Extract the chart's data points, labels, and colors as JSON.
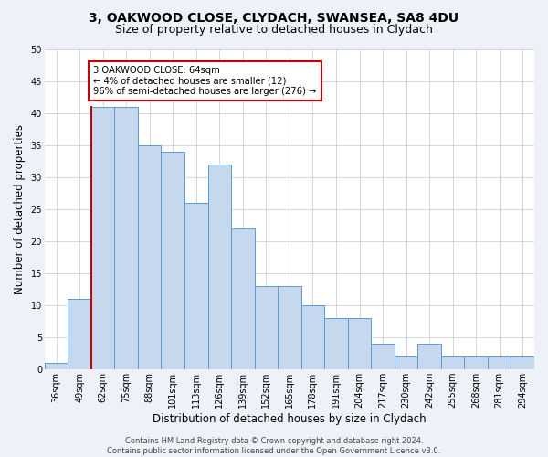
{
  "title1": "3, OAKWOOD CLOSE, CLYDACH, SWANSEA, SA8 4DU",
  "title2": "Size of property relative to detached houses in Clydach",
  "xlabel": "Distribution of detached houses by size in Clydach",
  "ylabel": "Number of detached properties",
  "categories": [
    "36sqm",
    "49sqm",
    "62sqm",
    "75sqm",
    "88sqm",
    "101sqm",
    "113sqm",
    "126sqm",
    "139sqm",
    "152sqm",
    "165sqm",
    "178sqm",
    "191sqm",
    "204sqm",
    "217sqm",
    "230sqm",
    "242sqm",
    "255sqm",
    "268sqm",
    "281sqm",
    "294sqm"
  ],
  "values": [
    1,
    11,
    41,
    41,
    35,
    34,
    26,
    32,
    22,
    13,
    13,
    10,
    8,
    8,
    4,
    2,
    4,
    2,
    2,
    2,
    2
  ],
  "bar_color": "#c5d8ed",
  "bar_edge_color": "#5b9bd5",
  "highlight_index": 2,
  "highlight_edge_color": "#cc0000",
  "annotation_text": "3 OAKWOOD CLOSE: 64sqm\n← 4% of detached houses are smaller (12)\n96% of semi-detached houses are larger (276) →",
  "annotation_box_color": "white",
  "annotation_box_edge_color": "#cc0000",
  "ylim": [
    0,
    50
  ],
  "yticks": [
    0,
    5,
    10,
    15,
    20,
    25,
    30,
    35,
    40,
    45,
    50
  ],
  "footer1": "Contains HM Land Registry data © Crown copyright and database right 2024.",
  "footer2": "Contains public sector information licensed under the Open Government Licence v3.0.",
  "bg_color": "#eef2f8",
  "plot_bg_color": "white",
  "title_fontsize": 10,
  "subtitle_fontsize": 9,
  "axis_label_fontsize": 8.5,
  "tick_fontsize": 7,
  "footer_fontsize": 6
}
